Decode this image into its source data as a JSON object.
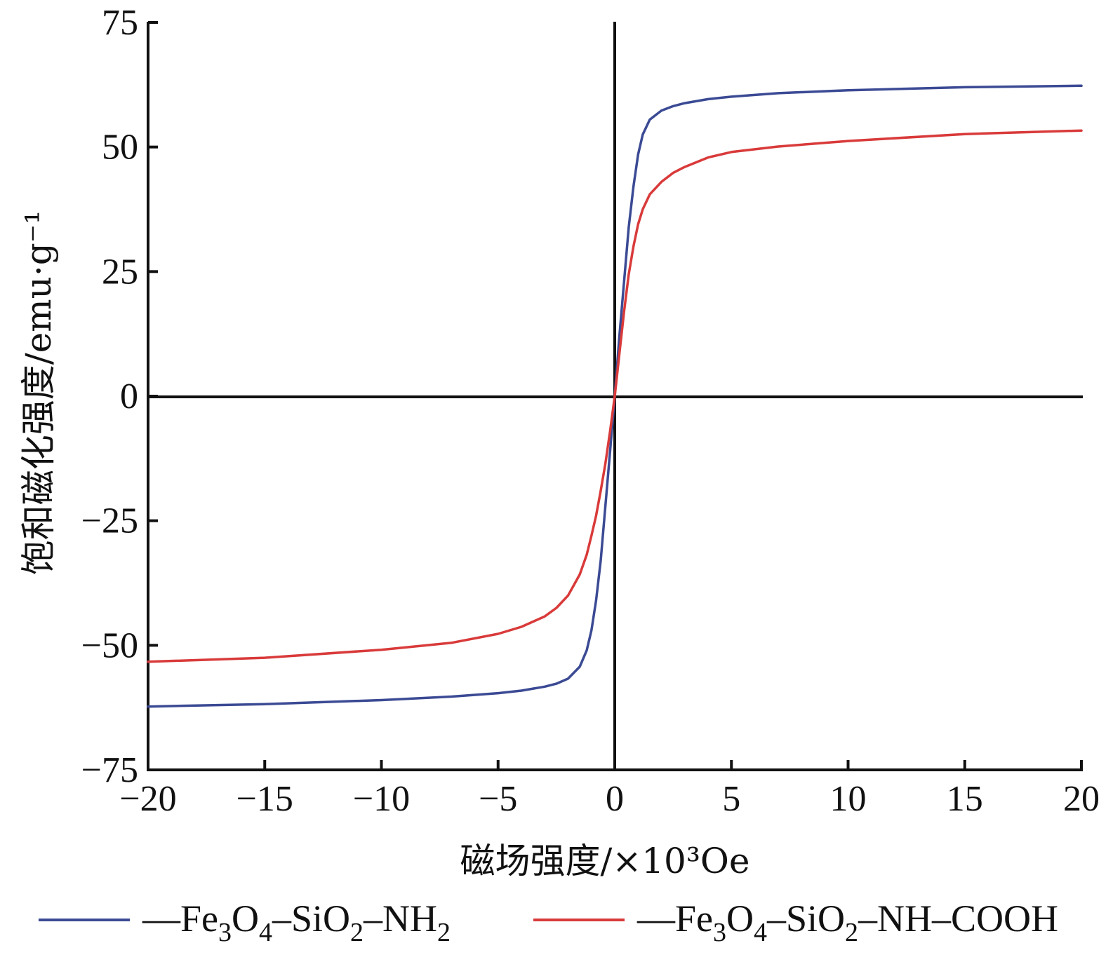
{
  "chart_data": {
    "type": "line",
    "title": "",
    "xlabel": "磁场强度/×10³Oe",
    "ylabel": "饱和磁化强度/emu·g⁻¹",
    "xlim": [
      -20,
      20
    ],
    "ylim": [
      -75,
      75
    ],
    "xticks": [
      -20,
      -15,
      -10,
      -5,
      0,
      5,
      10,
      15,
      20
    ],
    "yticks": [
      -75,
      -50,
      -25,
      0,
      25,
      50,
      75
    ],
    "xtick_labels": [
      "−20",
      "−15",
      "−10",
      "−5",
      "0",
      "5",
      "10",
      "15",
      "20"
    ],
    "ytick_labels": [
      "−75",
      "−50",
      "−25",
      "0",
      "25",
      "50",
      "75"
    ],
    "zero_lines": true,
    "grid": false,
    "legend_position": "bottom",
    "series": [
      {
        "name": "Fe3O4-SiO2-NH2",
        "color": "#3b4a94",
        "x": [
          -20,
          -15,
          -10,
          -7,
          -5,
          -4,
          -3,
          -2.5,
          -2,
          -1.5,
          -1.2,
          -1,
          -0.8,
          -0.6,
          -0.4,
          -0.2,
          0,
          0.2,
          0.4,
          0.6,
          0.8,
          1,
          1.2,
          1.5,
          2,
          2.5,
          3,
          4,
          5,
          7,
          10,
          15,
          20
        ],
        "y": [
          -62.3,
          -61.8,
          -61.0,
          -60.3,
          -59.6,
          -59.1,
          -58.3,
          -57.7,
          -56.7,
          -54.3,
          -51.0,
          -47.0,
          -41.0,
          -33.0,
          -22.0,
          -11.0,
          0,
          12.0,
          23.0,
          34.0,
          42.0,
          48.5,
          52.5,
          55.5,
          57.3,
          58.2,
          58.8,
          59.6,
          60.1,
          60.8,
          61.4,
          62.0,
          62.3
        ]
      },
      {
        "name": "Fe3O4-SiO2-NH-COOH",
        "color": "#d93a3a",
        "x": [
          -20,
          -15,
          -10,
          -7,
          -5,
          -4,
          -3,
          -2.5,
          -2,
          -1.5,
          -1.2,
          -1,
          -0.8,
          -0.6,
          -0.4,
          -0.2,
          0,
          0.2,
          0.4,
          0.6,
          0.8,
          1,
          1.2,
          1.5,
          2,
          2.5,
          3,
          4,
          5,
          7,
          10,
          15,
          20
        ],
        "y": [
          -53.3,
          -52.5,
          -50.9,
          -49.5,
          -47.7,
          -46.3,
          -44.2,
          -42.5,
          -40.0,
          -35.8,
          -31.8,
          -28.0,
          -24.0,
          -19.0,
          -13.5,
          -7.0,
          0,
          8.5,
          17.0,
          24.5,
          30.0,
          34.5,
          37.5,
          40.5,
          43.0,
          44.8,
          46.0,
          47.9,
          49.0,
          50.1,
          51.2,
          52.6,
          53.3
        ]
      }
    ]
  }
}
